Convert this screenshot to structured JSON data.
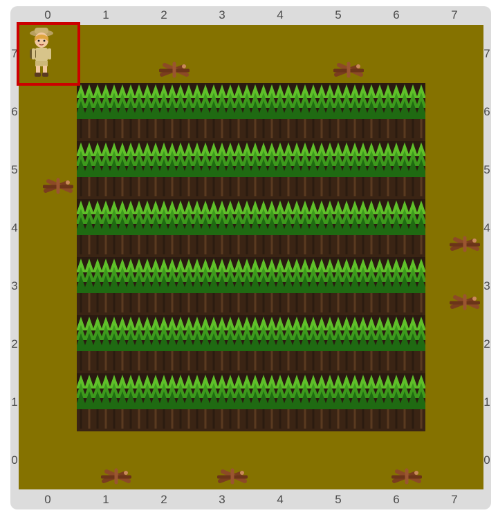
{
  "grid": {
    "size": 8,
    "column_labels": [
      "0",
      "1",
      "2",
      "3",
      "4",
      "5",
      "6",
      "7"
    ],
    "row_labels": [
      "7",
      "6",
      "5",
      "4",
      "3",
      "2",
      "1",
      "0"
    ]
  },
  "colors": {
    "path": "#857200",
    "frame": "#dcdcdc",
    "selection": "#cc0000",
    "tree_dark": "#1f6a12",
    "tree_light": "#5fc02a",
    "forest_ground": "#2a1a10"
  },
  "player": {
    "name": "explorer-character",
    "col": 0,
    "row": 7,
    "selected": true
  },
  "firewood": [
    {
      "col": 2,
      "row": 7
    },
    {
      "col": 5,
      "row": 7
    },
    {
      "col": 0,
      "row": 5
    },
    {
      "col": 7,
      "row": 4
    },
    {
      "col": 7,
      "row": 3
    },
    {
      "col": 1,
      "row": 0
    },
    {
      "col": 3,
      "row": 0
    },
    {
      "col": 6,
      "row": 0
    }
  ],
  "forest": {
    "col_from": 1,
    "col_to": 6,
    "row_from": 1,
    "row_to": 6
  }
}
